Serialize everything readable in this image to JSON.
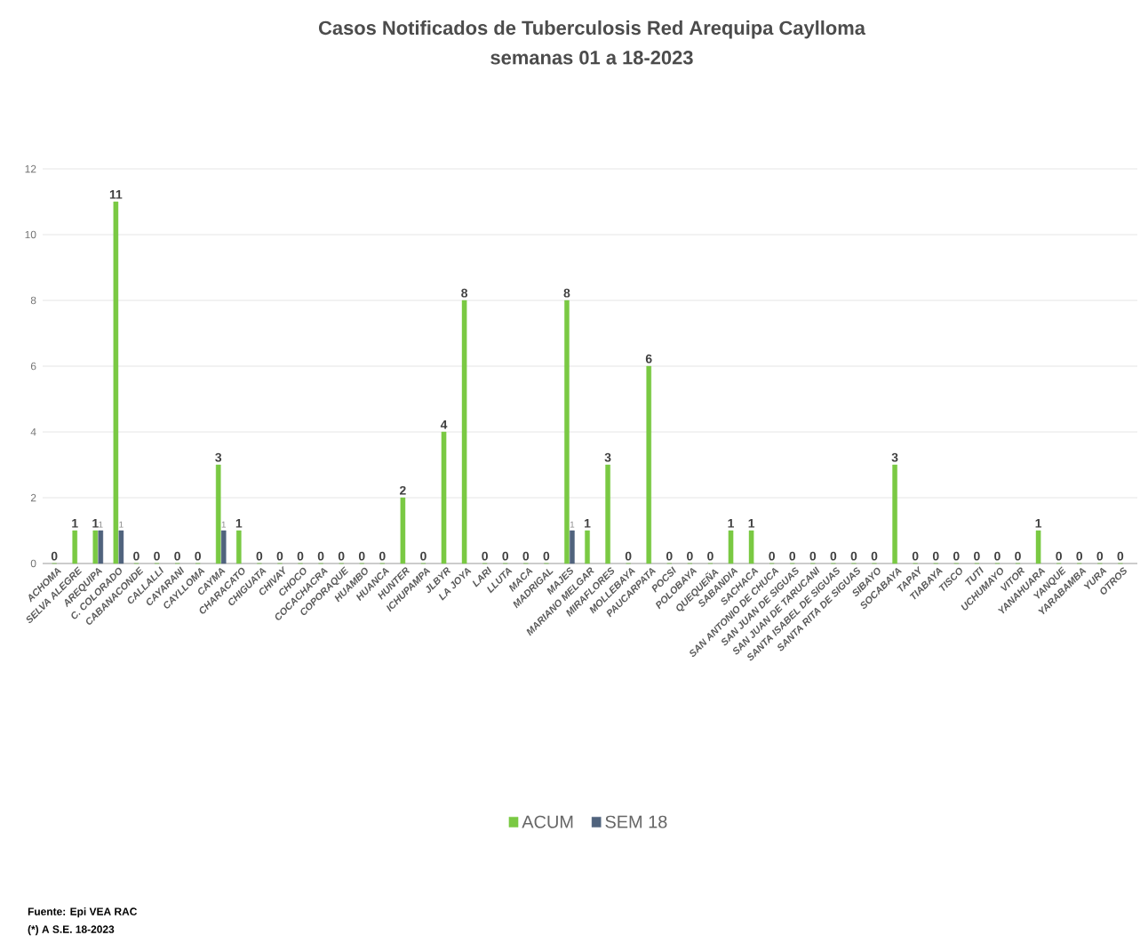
{
  "chart_data": {
    "type": "bar",
    "title": "Casos Notificados de Tuberculosis Red Arequipa Caylloma",
    "subtitle": "semanas 01 a 18-2023",
    "categories": [
      "ACHOMA",
      "SELVA ALEGRE",
      "AREQUIPA",
      "C. COLORADO",
      "CABANACONDE",
      "CALLALLI",
      "CAYARANI",
      "CAYLLOMA",
      "CAYMA",
      "CHARACATO",
      "CHIGUATA",
      "CHIVAY",
      "CHOCO",
      "COCACHACRA",
      "COPORAQUE",
      "HUAMBO",
      "HUANCA",
      "HUNTER",
      "ICHUPAMPA",
      "JLBYR",
      "LA JOYA",
      "LARI",
      "LLUTA",
      "MACA",
      "MADRIGAL",
      "MAJES",
      "MARIANO MELGAR",
      "MIRAFLORES",
      "MOLLEBAYA",
      "PAUCARPATA",
      "POCSI",
      "POLOBAYA",
      "QUEQUEÑA",
      "SABANDIA",
      "SACHACA",
      "SAN ANTONIO DE CHUCA",
      "SAN JUAN DE SIGUAS",
      "SAN JUAN DE TARUCANI",
      "SANTA ISABEL DE SIGUAS",
      "SANTA RITA DE SIGUAS",
      "SIBAYO",
      "SOCABAYA",
      "TAPAY",
      "TIABAYA",
      "TISCO",
      "TUTI",
      "UCHUMAYO",
      "VITOR",
      "YANAHUARA",
      "YANQUE",
      "YARABAMBA",
      "YURA",
      "OTROS"
    ],
    "series": [
      {
        "name": "ACUM",
        "color": "#7ac943",
        "values": [
          0,
          1,
          1,
          11,
          0,
          0,
          0,
          0,
          3,
          1,
          0,
          0,
          0,
          0,
          0,
          0,
          0,
          2,
          0,
          4,
          8,
          0,
          0,
          0,
          0,
          8,
          1,
          3,
          0,
          6,
          0,
          0,
          0,
          1,
          1,
          0,
          0,
          0,
          0,
          0,
          0,
          3,
          0,
          0,
          0,
          0,
          0,
          0,
          1,
          0,
          0,
          0,
          0
        ]
      },
      {
        "name": "SEM 18",
        "color": "#50637d",
        "values": [
          null,
          null,
          1,
          1,
          null,
          null,
          null,
          null,
          1,
          null,
          null,
          null,
          null,
          null,
          null,
          null,
          null,
          null,
          null,
          null,
          null,
          null,
          null,
          null,
          null,
          1,
          null,
          null,
          null,
          null,
          null,
          null,
          null,
          null,
          null,
          null,
          null,
          null,
          null,
          null,
          null,
          null,
          null,
          null,
          null,
          null,
          null,
          null,
          null,
          null,
          null,
          null,
          null
        ]
      }
    ],
    "ylim": [
      0,
      12
    ],
    "yticks": [
      0,
      2,
      4,
      6,
      8,
      10,
      12
    ],
    "grid": "y",
    "data_labels": true,
    "legend": "bottom",
    "annotations": [
      "Fuente: Epi VEA RAC",
      "(*) A S.E. 18-2023"
    ]
  }
}
